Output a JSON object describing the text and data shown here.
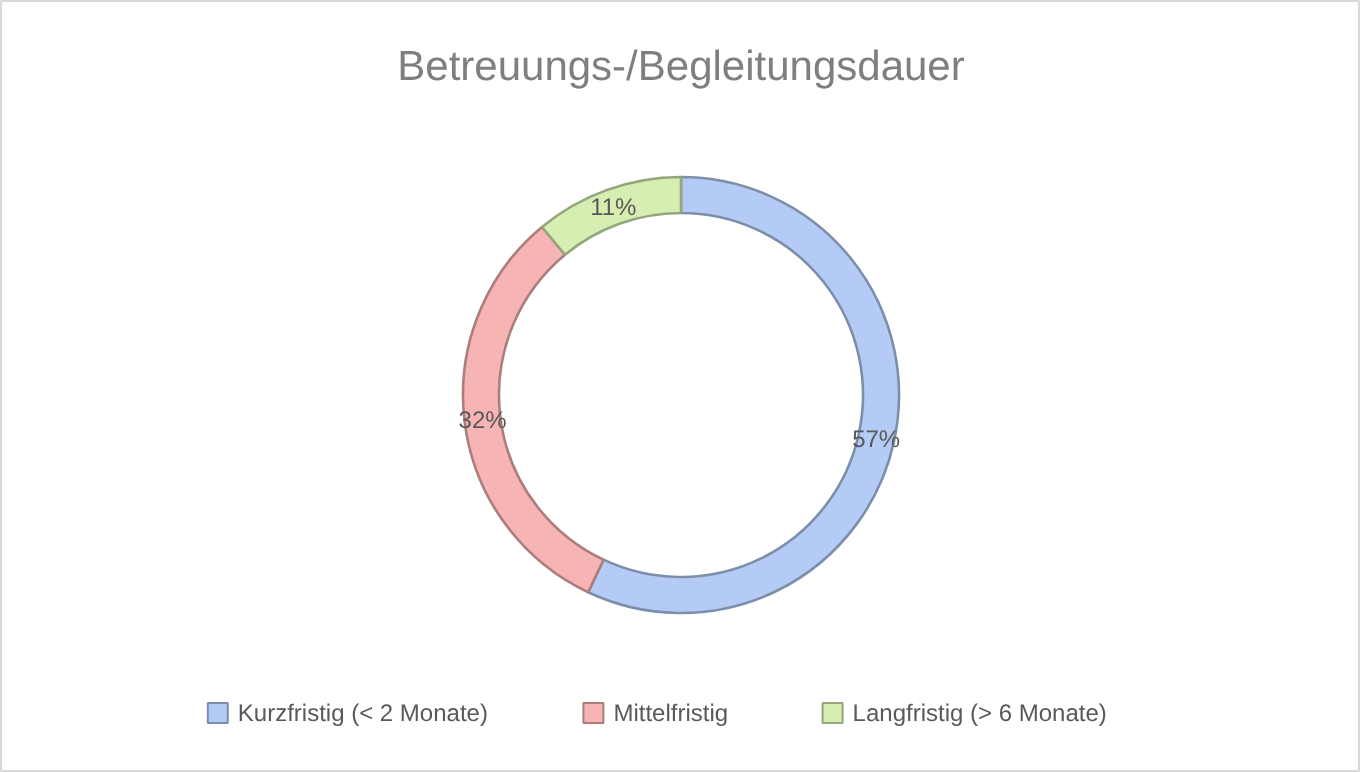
{
  "chart_data": {
    "type": "donut",
    "title": "Betreuungs-/Begleitungsdauer",
    "categories": [
      "Kurzfristig (< 2 Monate)",
      "Mittelfristig",
      "Langfristig (> 6 Monate)"
    ],
    "values": [
      57,
      32,
      11
    ],
    "colors": [
      "#b4cbf5",
      "#f6b4b4",
      "#d6eeb2"
    ],
    "value_labels": [
      "57%",
      "32%",
      "11%"
    ],
    "legend": "bottom"
  }
}
